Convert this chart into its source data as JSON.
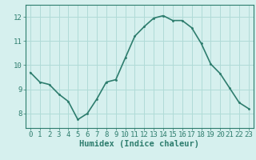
{
  "x": [
    0,
    1,
    2,
    3,
    4,
    5,
    6,
    7,
    8,
    9,
    10,
    11,
    12,
    13,
    14,
    15,
    16,
    17,
    18,
    19,
    20,
    21,
    22,
    23
  ],
  "y": [
    9.7,
    9.3,
    9.2,
    8.8,
    8.5,
    7.75,
    8.0,
    8.6,
    9.3,
    9.4,
    10.3,
    11.2,
    11.6,
    11.95,
    12.05,
    11.85,
    11.85,
    11.55,
    10.9,
    10.05,
    9.65,
    9.05,
    8.45,
    8.2
  ],
  "xlabel": "Humidex (Indice chaleur)",
  "yticks": [
    8,
    9,
    10,
    11,
    12
  ],
  "xticks": [
    0,
    1,
    2,
    3,
    4,
    5,
    6,
    7,
    8,
    9,
    10,
    11,
    12,
    13,
    14,
    15,
    16,
    17,
    18,
    19,
    20,
    21,
    22,
    23
  ],
  "ylim": [
    7.4,
    12.5
  ],
  "xlim": [
    -0.5,
    23.5
  ],
  "line_color": "#2e7d6e",
  "marker_color": "#2e7d6e",
  "bg_color": "#d6f0ee",
  "grid_color": "#b0dbd7",
  "axis_color": "#2e7d6e",
  "tick_label_color": "#2e7d6e",
  "xlabel_color": "#2e7d6e",
  "xlabel_fontsize": 7.5,
  "tick_fontsize": 6.5,
  "line_width": 1.2,
  "marker_size": 2.5
}
